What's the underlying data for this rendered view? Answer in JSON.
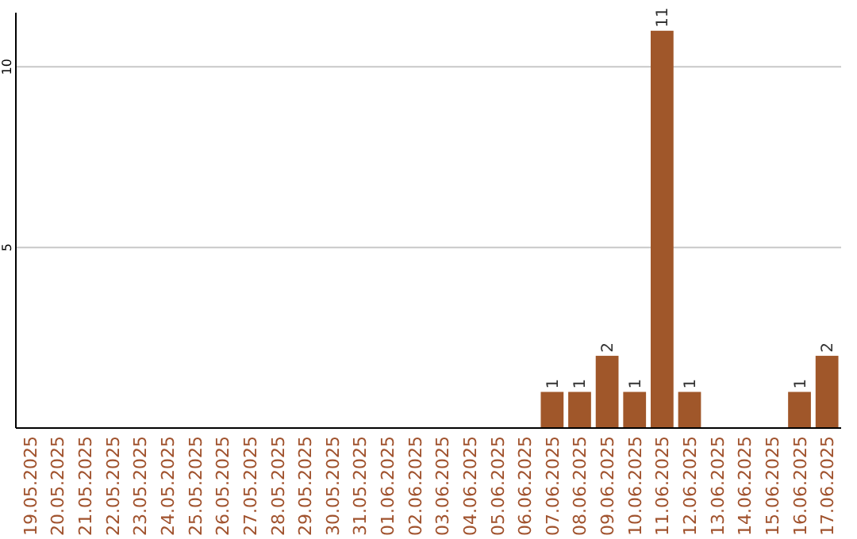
{
  "chart_data": {
    "type": "bar",
    "categories": [
      "19.05.2025",
      "20.05.2025",
      "21.05.2025",
      "22.05.2025",
      "23.05.2025",
      "24.05.2025",
      "25.05.2025",
      "26.05.2025",
      "27.05.2025",
      "28.05.2025",
      "29.05.2025",
      "30.05.2025",
      "31.05.2025",
      "01.06.2025",
      "02.06.2025",
      "03.06.2025",
      "04.06.2025",
      "05.06.2025",
      "06.06.2025",
      "07.06.2025",
      "08.06.2025",
      "09.06.2025",
      "10.06.2025",
      "11.06.2025",
      "12.06.2025",
      "13.06.2025",
      "14.06.2025",
      "15.06.2025",
      "16.06.2025",
      "17.06.2025"
    ],
    "values": [
      0,
      0,
      0,
      0,
      0,
      0,
      0,
      0,
      0,
      0,
      0,
      0,
      0,
      0,
      0,
      0,
      0,
      0,
      0,
      1,
      1,
      2,
      1,
      11,
      1,
      0,
      0,
      0,
      1,
      2
    ],
    "value_labels": [
      null,
      null,
      null,
      null,
      null,
      null,
      null,
      null,
      null,
      null,
      null,
      null,
      null,
      null,
      null,
      null,
      null,
      null,
      null,
      "1",
      "1",
      "2",
      "1",
      "11",
      "1",
      null,
      null,
      null,
      "1",
      "2"
    ],
    "color": "#a0572a",
    "ylim": [
      0,
      11.5
    ],
    "yticks": [
      5,
      10
    ],
    "grid": "y"
  }
}
